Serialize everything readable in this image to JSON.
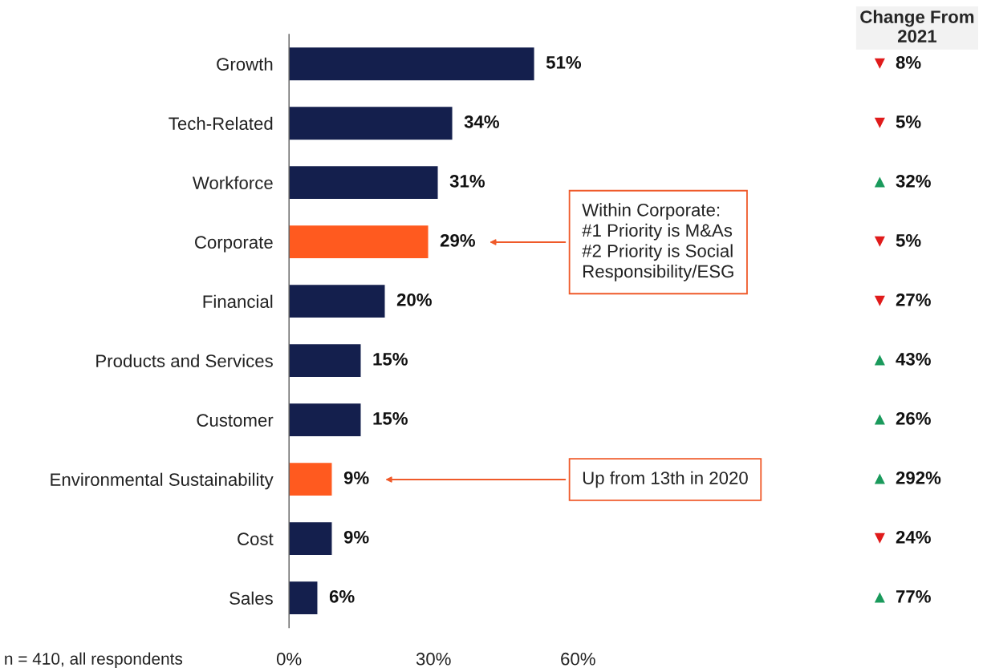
{
  "chart_data": {
    "type": "bar",
    "orientation": "horizontal",
    "categories": [
      "Growth",
      "Tech-Related",
      "Workforce",
      "Corporate",
      "Financial",
      "Products and Services",
      "Customer",
      "Environmental Sustainability",
      "Cost",
      "Sales"
    ],
    "values": [
      51,
      34,
      31,
      29,
      20,
      15,
      15,
      9,
      9,
      6
    ],
    "value_labels": [
      "51%",
      "34%",
      "31%",
      "29%",
      "20%",
      "15%",
      "15%",
      "9%",
      "9%",
      "6%"
    ],
    "colors": [
      "#141f4d",
      "#141f4d",
      "#141f4d",
      "#ff5a1f",
      "#141f4d",
      "#141f4d",
      "#141f4d",
      "#ff5a1f",
      "#141f4d",
      "#141f4d"
    ],
    "xlim": [
      0,
      60
    ],
    "xticks": [
      {
        "value": 0,
        "label": "0%"
      },
      {
        "value": 30,
        "label": "30%"
      },
      {
        "value": 60,
        "label": "60%"
      }
    ],
    "grid": false,
    "legend": false,
    "annotations": [
      "Within Corporate:\n#1 Priority is M&As\n#2 Priority is Social\nResponsibility/ESG",
      "Up from 13th in 2020",
      "Change From\n2021",
      "▼ 8%",
      "▼ 5%",
      "▲ 32%",
      "▼ 5%",
      "▼ 27%",
      "▲ 43%",
      "▲ 26%",
      "▲ 292%",
      "▼ 24%",
      "▲ 77%",
      "n = 410, all respondents"
    ]
  }
}
